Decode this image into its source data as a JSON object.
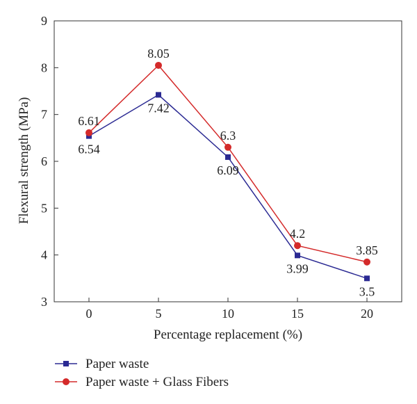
{
  "chart_data": {
    "type": "line",
    "x": [
      0,
      5,
      10,
      15,
      20
    ],
    "xlabel": "Percentage replacement (%)",
    "ylabel": "Flexural strength (MPa)",
    "xlim": [
      -2.5,
      22.5
    ],
    "ylim": [
      3,
      9
    ],
    "xticks": [
      "0",
      "5",
      "10",
      "15",
      "20"
    ],
    "yticks": [
      "3",
      "4",
      "5",
      "6",
      "7",
      "8",
      "9"
    ],
    "grid": false,
    "legend_position": "bottom-left",
    "series": [
      {
        "name": "Paper waste",
        "values": [
          6.54,
          7.42,
          6.09,
          3.99,
          3.5
        ],
        "labels": [
          "6.54",
          "7.42",
          "6.09",
          "3.99",
          "3.5"
        ],
        "color": "#2b2a93",
        "marker": "square"
      },
      {
        "name": "Paper waste + Glass Fibers",
        "values": [
          6.61,
          8.05,
          6.3,
          4.2,
          3.85
        ],
        "labels": [
          "6.61",
          "8.05",
          "6.3",
          "4.2",
          "3.85"
        ],
        "color": "#d42a2a",
        "marker": "circle"
      }
    ]
  }
}
